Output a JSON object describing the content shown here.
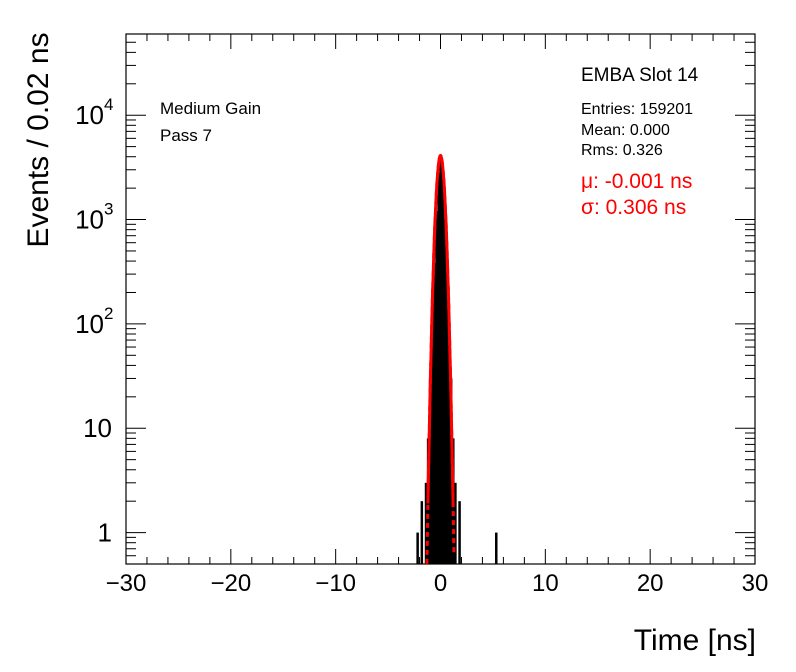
{
  "chart_data": {
    "type": "histogram",
    "title": "",
    "xlabel": "Time [ns]",
    "ylabel": "Events / 0.02 ns",
    "xlim": [
      -30,
      30
    ],
    "ylim_log": [
      0.5,
      60000
    ],
    "yscale": "log",
    "xticks": [
      {
        "value": -30,
        "label": "−30"
      },
      {
        "value": -20,
        "label": "−20"
      },
      {
        "value": -10,
        "label": "−10"
      },
      {
        "value": 0,
        "label": "0"
      },
      {
        "value": 10,
        "label": "10"
      },
      {
        "value": 20,
        "label": "20"
      },
      {
        "value": 30,
        "label": "30"
      }
    ],
    "yticks": [
      {
        "value": 1,
        "base": "1",
        "exp": ""
      },
      {
        "value": 10,
        "base": "10",
        "exp": ""
      },
      {
        "value": 100,
        "base": "10",
        "exp": "2"
      },
      {
        "value": 1000,
        "base": "10",
        "exp": "3"
      },
      {
        "value": 10000,
        "base": "10",
        "exp": "4"
      }
    ],
    "labels": {
      "slot": "EMBA Slot 14",
      "gain": "Medium Gain",
      "pass": "Pass 7"
    },
    "stats": {
      "entries_label": "Entries: 159201",
      "mean_label": "Mean: 0.000",
      "rms_label": "Rms: 0.326",
      "entries": 159201,
      "mean": 0.0,
      "rms": 0.326
    },
    "fit": {
      "mu_label": "μ: -0.001 ns",
      "sigma_label": "σ: 0.306 ns",
      "mu": -0.001,
      "sigma": 0.306,
      "peak": 4100,
      "color": "#ff0000"
    },
    "series": [
      {
        "name": "histogram",
        "color": "#000000",
        "x": [
          -2.2,
          -1.8,
          -1.4,
          -1.2,
          -1.0,
          -0.8,
          -0.6,
          -0.4,
          -0.2,
          0.0,
          0.2,
          0.4,
          0.6,
          0.8,
          1.0,
          1.2,
          1.4,
          1.8,
          5.3
        ],
        "values": [
          1,
          2,
          3,
          8,
          30,
          120,
          380,
          1200,
          2800,
          4100,
          2800,
          1200,
          380,
          120,
          30,
          8,
          3,
          2,
          1
        ]
      }
    ]
  }
}
